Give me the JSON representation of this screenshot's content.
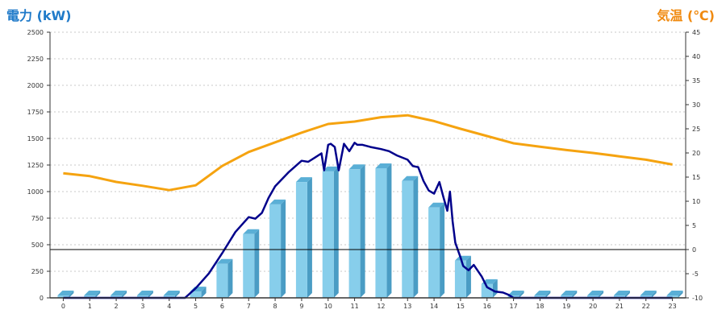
{
  "chart_data": {
    "type": "bar",
    "left_axis_title": "電力 (kW)",
    "right_axis_title": "気温 (℃)",
    "categories": [
      "0",
      "1",
      "2",
      "3",
      "4",
      "5",
      "6",
      "7",
      "8",
      "9",
      "10",
      "11",
      "12",
      "13",
      "14",
      "15",
      "16",
      "17",
      "18",
      "19",
      "20",
      "21",
      "22",
      "23"
    ],
    "ylim_left": [
      0,
      2500
    ],
    "ylim_right": [
      -10,
      45
    ],
    "y_ticks_left": [
      0,
      250,
      500,
      750,
      1000,
      1250,
      1500,
      1750,
      2000,
      2250,
      2500
    ],
    "y_ticks_right": [
      -10,
      -5,
      0,
      5,
      10,
      15,
      20,
      25,
      30,
      35,
      40,
      45
    ],
    "grid": true,
    "series": [
      {
        "type": "bar",
        "axis": "left",
        "color": "#87ceeb",
        "values": [
          0,
          0,
          0,
          0,
          0,
          60,
          320,
          600,
          880,
          1090,
          1190,
          1210,
          1220,
          1100,
          850,
          350,
          130,
          20,
          0,
          0,
          0,
          0,
          0,
          0
        ]
      },
      {
        "type": "line",
        "axis": "left",
        "color": "#00008b",
        "x": [
          0,
          1,
          2,
          3,
          4,
          4.6,
          5,
          5.5,
          6,
          6.5,
          7,
          7.25,
          7.5,
          7.75,
          8,
          8.5,
          9,
          9.25,
          9.5,
          9.75,
          9.85,
          10,
          10.1,
          10.25,
          10.4,
          10.6,
          10.8,
          11,
          11.1,
          11.3,
          11.6,
          12,
          12.3,
          12.6,
          13,
          13.2,
          13.4,
          13.6,
          13.8,
          14,
          14.2,
          14.35,
          14.5,
          14.6,
          14.7,
          14.8,
          15,
          15.1,
          15.3,
          15.5,
          15.8,
          16,
          16.3,
          16.6,
          16.8,
          17,
          17.5,
          18,
          19,
          20,
          21,
          22,
          23
        ],
        "y": [
          0,
          0,
          0,
          0,
          0,
          0,
          90,
          230,
          420,
          620,
          760,
          745,
          800,
          940,
          1050,
          1180,
          1290,
          1280,
          1320,
          1360,
          1200,
          1440,
          1450,
          1420,
          1200,
          1450,
          1380,
          1460,
          1440,
          1440,
          1420,
          1400,
          1380,
          1340,
          1300,
          1240,
          1230,
          1100,
          1010,
          980,
          1090,
          950,
          820,
          1000,
          720,
          520,
          380,
          300,
          260,
          310,
          200,
          100,
          60,
          50,
          30,
          0,
          0,
          0,
          0,
          0,
          0,
          0,
          0
        ]
      },
      {
        "type": "line",
        "axis": "right",
        "color": "#f5a310",
        "x": [
          0,
          1,
          2,
          3,
          4,
          5,
          6,
          7,
          8,
          9,
          10,
          11,
          12,
          13,
          14,
          15,
          16,
          17,
          18,
          19,
          20,
          21,
          22,
          23
        ],
        "y": [
          15.8,
          15.2,
          14.0,
          13.2,
          12.3,
          13.3,
          17.3,
          20.2,
          22.2,
          24.2,
          26.0,
          26.5,
          27.4,
          27.8,
          26.6,
          25.0,
          23.5,
          22.0,
          21.3,
          20.6,
          20.0,
          19.3,
          18.6,
          17.6
        ]
      }
    ]
  }
}
